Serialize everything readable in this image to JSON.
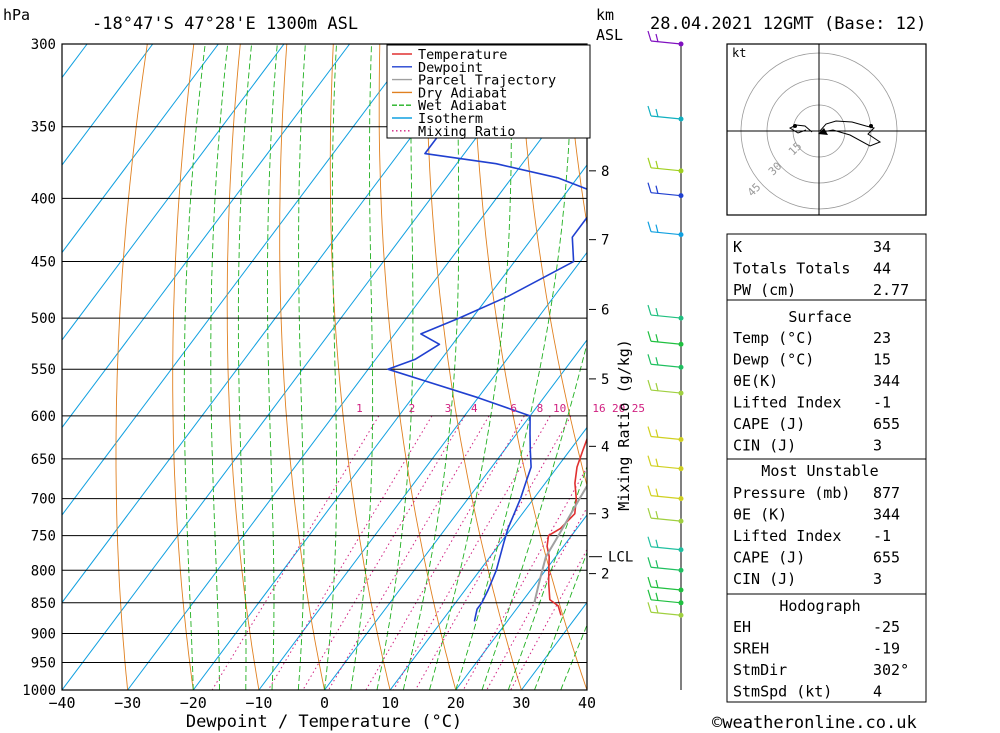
{
  "header": {
    "pressure_unit": "hPa",
    "location": "-18°47'S  47°28'E  1300m  ASL",
    "alt_unit_1": "km",
    "alt_unit_2": "ASL",
    "datetime": "28.04.2021  12GMT  (Base: 12)"
  },
  "chart_data": {
    "type": "line",
    "xlabel": "Dewpoint / Temperature (°C)",
    "ylabel": "",
    "x_axis_ticks": [
      -40,
      -30,
      -20,
      -10,
      0,
      10,
      20,
      30,
      40
    ],
    "x_range": [
      -40,
      40
    ],
    "pressure_levels": [
      300,
      350,
      400,
      450,
      500,
      550,
      600,
      650,
      700,
      750,
      800,
      850,
      900,
      950,
      1000
    ],
    "pressure_range": [
      300,
      1000
    ],
    "km_ticks": [
      {
        "label": "8",
        "pressure": 380
      },
      {
        "label": "7",
        "pressure": 432
      },
      {
        "label": "6",
        "pressure": 492
      },
      {
        "label": "5",
        "pressure": 560
      },
      {
        "label": "4",
        "pressure": 635
      },
      {
        "label": "3",
        "pressure": 720
      },
      {
        "label": "2",
        "pressure": 805
      }
    ],
    "lcl_label": "LCL",
    "lcl_pressure": 780,
    "mixing_ratio_axis_label": "Mixing Ratio (g/kg)",
    "mixing_ratio_labels": [
      {
        "label": "1",
        "temp": -26
      },
      {
        "label": "2",
        "temp": -18
      },
      {
        "label": "3",
        "temp": -12.5
      },
      {
        "label": "4",
        "temp": -8.5
      },
      {
        "label": "6",
        "temp": -2.5
      },
      {
        "label": "8",
        "temp": 1.5
      },
      {
        "label": "10",
        "temp": 4.5
      },
      {
        "label": "16",
        "temp": 10.5
      },
      {
        "label": "20",
        "temp": 13.5
      },
      {
        "label": "25",
        "temp": 16.5
      }
    ],
    "legend": [
      {
        "name": "Temperature",
        "color": "#e03030",
        "style": "solid"
      },
      {
        "name": "Dewpoint",
        "color": "#2040d0",
        "style": "solid"
      },
      {
        "name": "Parcel Trajectory",
        "color": "#a0a0a0",
        "style": "solid"
      },
      {
        "name": "Dry Adiabat",
        "color": "#e08020",
        "style": "solid"
      },
      {
        "name": "Wet Adiabat",
        "color": "#20b020",
        "style": "dashed"
      },
      {
        "name": "Isotherm",
        "color": "#10a0e0",
        "style": "solid"
      },
      {
        "name": "Mixing Ratio",
        "color": "#d02080",
        "style": "dotted"
      }
    ],
    "series": [
      {
        "name": "Temperature",
        "color": "#e03030",
        "points": [
          [
            870,
            27.5
          ],
          [
            855,
            26
          ],
          [
            845,
            24
          ],
          [
            820,
            22
          ],
          [
            800,
            20.5
          ],
          [
            780,
            19
          ],
          [
            765,
            17.5
          ],
          [
            750,
            16.5
          ],
          [
            740,
            17.5
          ],
          [
            720,
            18
          ],
          [
            700,
            16.5
          ],
          [
            680,
            14.5
          ],
          [
            660,
            13
          ],
          [
            640,
            12
          ],
          [
            620,
            11
          ],
          [
            600,
            10
          ],
          [
            580,
            10
          ],
          [
            560,
            9
          ],
          [
            540,
            7.5
          ],
          [
            520,
            6
          ],
          [
            500,
            4
          ],
          [
            475,
            1.5
          ],
          [
            450,
            -2
          ],
          [
            425,
            -5
          ],
          [
            410,
            -8
          ],
          [
            400,
            -10
          ],
          [
            392,
            -11
          ],
          [
            385,
            -9
          ],
          [
            375,
            -7.5
          ],
          [
            355,
            -10
          ],
          [
            330,
            -14
          ],
          [
            300,
            -20
          ]
        ]
      },
      {
        "name": "Dewpoint",
        "color": "#2040d0",
        "points": [
          [
            880,
            15
          ],
          [
            870,
            14.5
          ],
          [
            860,
            14
          ],
          [
            850,
            14
          ],
          [
            830,
            13.5
          ],
          [
            800,
            12.5
          ],
          [
            780,
            11.5
          ],
          [
            760,
            10.5
          ],
          [
            740,
            9.5
          ],
          [
            700,
            8
          ],
          [
            680,
            7
          ],
          [
            660,
            6
          ],
          [
            640,
            4
          ],
          [
            620,
            2
          ],
          [
            600,
            0
          ],
          [
            580,
            -10
          ],
          [
            550,
            -27
          ],
          [
            540,
            -24
          ],
          [
            525,
            -22
          ],
          [
            515,
            -26
          ],
          [
            500,
            -22
          ],
          [
            480,
            -17
          ],
          [
            450,
            -11
          ],
          [
            430,
            -14
          ],
          [
            410,
            -14
          ],
          [
            400,
            -14
          ],
          [
            395,
            -16
          ],
          [
            385,
            -23
          ],
          [
            375,
            -34
          ],
          [
            368,
            -46
          ],
          [
            340,
            -46
          ],
          [
            300,
            -48
          ]
        ]
      },
      {
        "name": "Parcel Trajectory",
        "color": "#a0a0a0",
        "points": [
          [
            850,
            22
          ],
          [
            820,
            20.5
          ],
          [
            800,
            19.5
          ],
          [
            780,
            18.5
          ],
          [
            750,
            18
          ],
          [
            700,
            17
          ],
          [
            650,
            16
          ],
          [
            600,
            14
          ],
          [
            550,
            11.5
          ],
          [
            500,
            8.5
          ],
          [
            450,
            5
          ],
          [
            400,
            0
          ],
          [
            370,
            -3
          ]
        ]
      }
    ],
    "hodograph_unit": "kt",
    "hodograph_rings": [
      "15",
      "30",
      "45"
    ],
    "wind_barbs": [
      {
        "pressure": 300,
        "color": "#8010c0"
      },
      {
        "pressure": 345,
        "color": "#10b0c0"
      },
      {
        "pressure": 380,
        "color": "#a0d020"
      },
      {
        "pressure": 398,
        "color": "#2040d0"
      },
      {
        "pressure": 428,
        "color": "#10a0e0"
      },
      {
        "pressure": 500,
        "color": "#20c080"
      },
      {
        "pressure": 525,
        "color": "#20c040"
      },
      {
        "pressure": 548,
        "color": "#20c060"
      },
      {
        "pressure": 575,
        "color": "#a0d040"
      },
      {
        "pressure": 627,
        "color": "#d0d020"
      },
      {
        "pressure": 662,
        "color": "#d0d020"
      },
      {
        "pressure": 700,
        "color": "#d0d020"
      },
      {
        "pressure": 730,
        "color": "#a0d040"
      },
      {
        "pressure": 770,
        "color": "#20c0a0"
      },
      {
        "pressure": 800,
        "color": "#20c060"
      },
      {
        "pressure": 830,
        "color": "#20c040"
      },
      {
        "pressure": 850,
        "color": "#20c040"
      },
      {
        "pressure": 870,
        "color": "#a0d040"
      }
    ]
  },
  "indices": {
    "rows": [
      {
        "label": "K",
        "value": "34"
      },
      {
        "label": "Totals Totals",
        "value": "44"
      },
      {
        "label": "PW (cm)",
        "value": "2.77"
      }
    ]
  },
  "surface": {
    "title": "Surface",
    "rows": [
      {
        "label": "Temp (°C)",
        "value": "23"
      },
      {
        "label": "Dewp (°C)",
        "value": "15"
      },
      {
        "label": "θE(K)",
        "value": "344"
      },
      {
        "label": "Lifted Index",
        "value": "-1"
      },
      {
        "label": "CAPE (J)",
        "value": "655"
      },
      {
        "label": "CIN (J)",
        "value": "3"
      }
    ]
  },
  "most_unstable": {
    "title": "Most Unstable",
    "rows": [
      {
        "label": "Pressure (mb)",
        "value": "877"
      },
      {
        "label": "θE (K)",
        "value": "344"
      },
      {
        "label": "Lifted Index",
        "value": "-1"
      },
      {
        "label": "CAPE (J)",
        "value": "655"
      },
      {
        "label": "CIN (J)",
        "value": "3"
      }
    ]
  },
  "hodograph_box": {
    "title": "Hodograph",
    "rows": [
      {
        "label": "EH",
        "value": "-25"
      },
      {
        "label": "SREH",
        "value": "-19"
      },
      {
        "label": "StmDir",
        "value": "302°"
      },
      {
        "label": "StmSpd (kt)",
        "value": "4"
      }
    ]
  },
  "footer": {
    "copyright": "©weatheronline.co.uk"
  }
}
